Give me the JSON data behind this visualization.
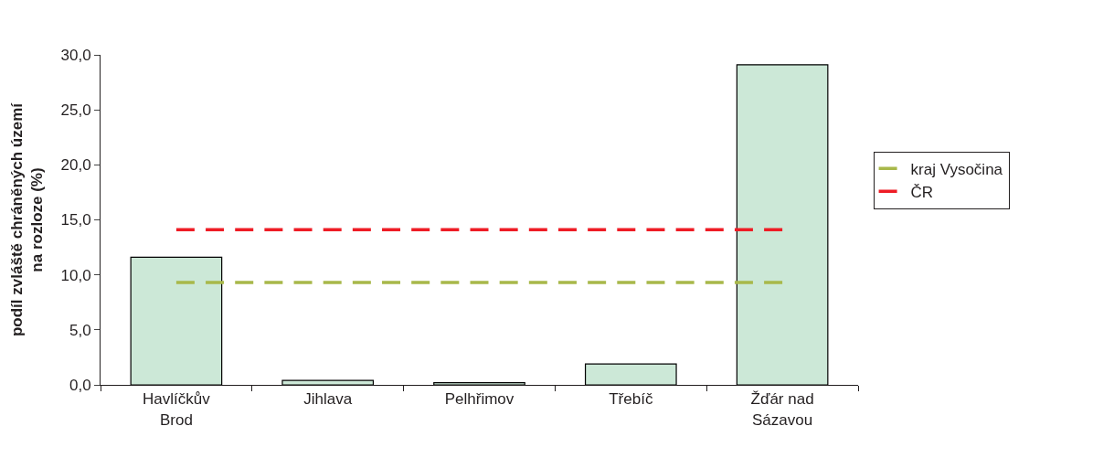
{
  "chart_data": {
    "type": "bar",
    "ylabel": "podíl zvláště chráněných území na rozloze (%)",
    "categories": [
      "Havlíčkův Brod",
      "Jihlava",
      "Pelhřimov",
      "Třebíč",
      "Žďár nad Sázavou"
    ],
    "series": [
      {
        "color": "#cce8d7",
        "values": [
          11.6,
          0.4,
          0.2,
          1.9,
          29.1
        ]
      },
      {
        "type": "line",
        "name": "kraj Vysočina",
        "color": "#a8b84a",
        "line_style": "dashed",
        "values": [
          9.3,
          9.3,
          9.3,
          9.3,
          9.3
        ]
      },
      {
        "type": "line",
        "name": "ČR",
        "color": "#ee1c25",
        "line_style": "dashed",
        "values": [
          14.1,
          14.1,
          14.1,
          14.1,
          14.1
        ]
      }
    ],
    "ylim": [
      0,
      30
    ],
    "yticks": [
      {
        "value": 0,
        "label": "0,0"
      },
      {
        "value": 5,
        "label": "5,0"
      },
      {
        "value": 10,
        "label": "10,0"
      },
      {
        "value": 15,
        "label": "15,0"
      },
      {
        "value": 20,
        "label": "20,0"
      },
      {
        "value": 25,
        "label": "25,0"
      },
      {
        "value": 30,
        "label": "30,0"
      }
    ],
    "grid": false,
    "legend": "right"
  }
}
